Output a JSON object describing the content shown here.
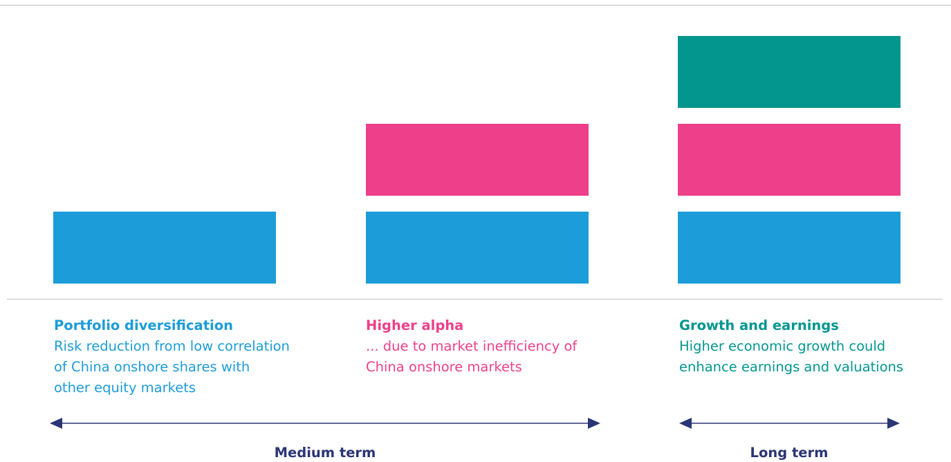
{
  "columns": [
    {
      "title": "Portfolio diversification",
      "description": [
        "Risk reduction from low correlation",
        "of China onshore shares with",
        "other equity markets"
      ]
    },
    {
      "title": "Higher alpha",
      "description": [
        "... due to market inefficiency of",
        "China onshore markets"
      ]
    },
    {
      "title": "Growth and earnings",
      "description": [
        "Higher economic growth could",
        "enhance earnings and valuations"
      ]
    }
  ],
  "terms": [
    "Medium term",
    "Long term"
  ]
}
